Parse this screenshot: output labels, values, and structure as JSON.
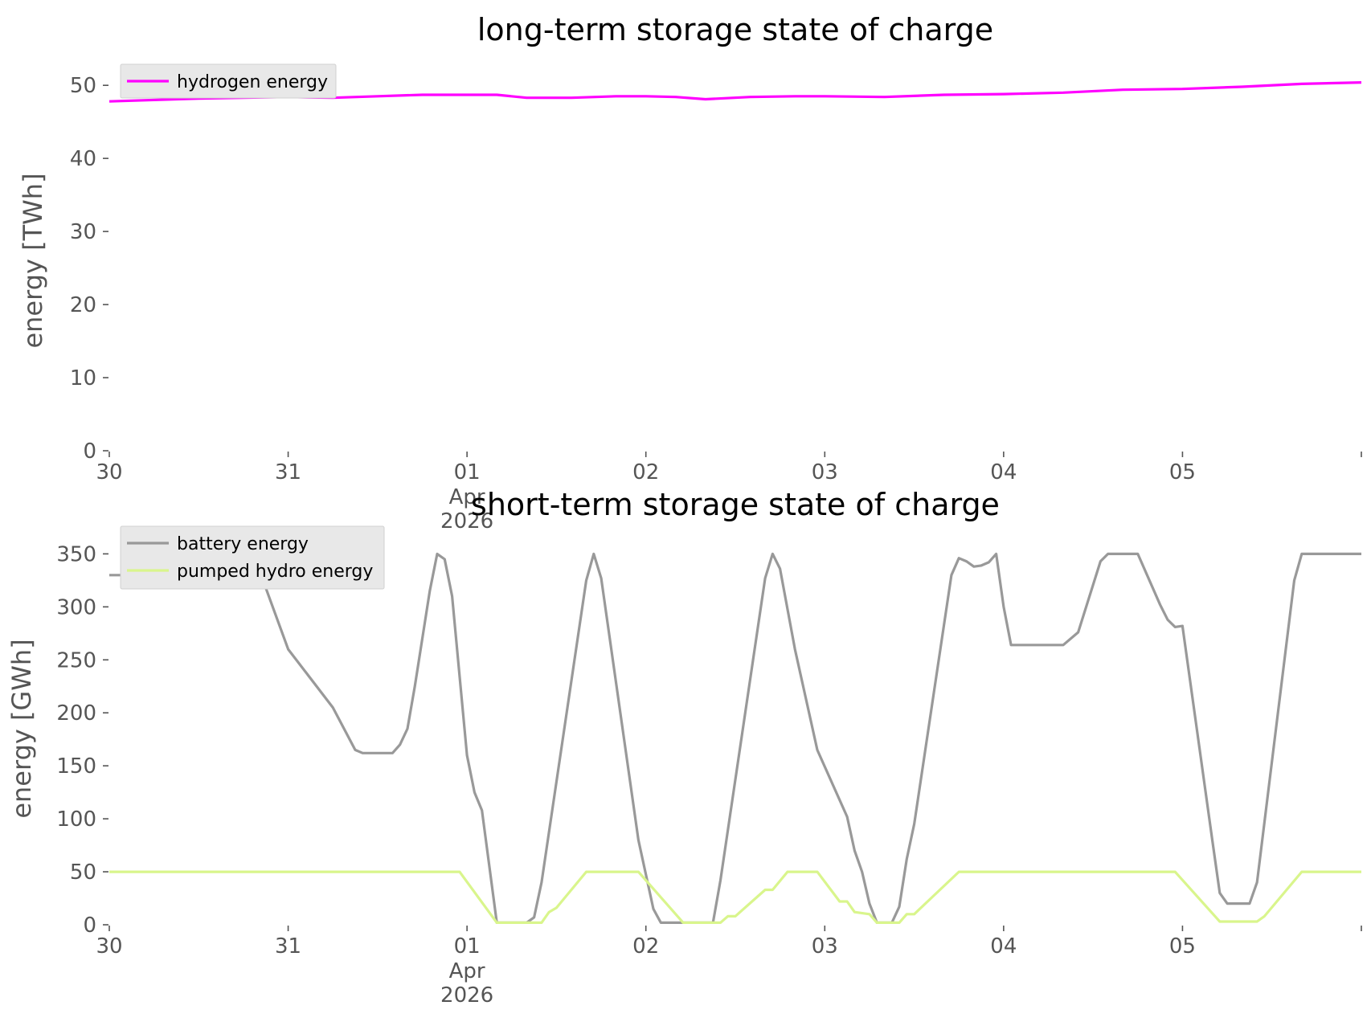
{
  "chart_data": [
    {
      "type": "line",
      "title": "long-term storage state of charge",
      "xlabel": "",
      "ylabel": "energy [TWh]",
      "ylim": [
        0,
        52
      ],
      "yticks": [
        0,
        10,
        20,
        30,
        40,
        50
      ],
      "xlim": [
        "2026-03-30",
        "2026-04-06"
      ],
      "xticks": [
        {
          "value": "2026-03-30",
          "label": "30"
        },
        {
          "value": "2026-03-31",
          "label": "31"
        },
        {
          "value": "2026-04-01",
          "label": "01",
          "sublabel": "Apr",
          "sublabel2": "2026"
        },
        {
          "value": "2026-04-02",
          "label": "02"
        },
        {
          "value": "2026-04-03",
          "label": "03"
        },
        {
          "value": "2026-04-04",
          "label": "04"
        },
        {
          "value": "2026-04-05",
          "label": "05"
        },
        {
          "value": "2026-04-06",
          "label": ""
        }
      ],
      "grid": false,
      "legend_position": "top-left",
      "series": [
        {
          "name": "hydrogen energy",
          "color": "#ff00ff",
          "points": [
            [
              "2026-03-30T00:00",
              47.8
            ],
            [
              "2026-03-30T12:00",
              48.2
            ],
            [
              "2026-03-31T00:00",
              48.4
            ],
            [
              "2026-03-31T06:00",
              48.3
            ],
            [
              "2026-03-31T12:00",
              48.5
            ],
            [
              "2026-03-31T18:00",
              48.7
            ],
            [
              "2026-04-01T00:00",
              48.7
            ],
            [
              "2026-04-01T04:00",
              48.7
            ],
            [
              "2026-04-01T08:00",
              48.3
            ],
            [
              "2026-04-01T14:00",
              48.3
            ],
            [
              "2026-04-01T20:00",
              48.5
            ],
            [
              "2026-04-02T00:00",
              48.5
            ],
            [
              "2026-04-02T04:00",
              48.4
            ],
            [
              "2026-04-02T08:00",
              48.1
            ],
            [
              "2026-04-02T14:00",
              48.4
            ],
            [
              "2026-04-02T20:00",
              48.5
            ],
            [
              "2026-04-03T00:00",
              48.5
            ],
            [
              "2026-04-03T08:00",
              48.4
            ],
            [
              "2026-04-03T16:00",
              48.7
            ],
            [
              "2026-04-04T00:00",
              48.8
            ],
            [
              "2026-04-04T08:00",
              49.0
            ],
            [
              "2026-04-04T16:00",
              49.4
            ],
            [
              "2026-04-05T00:00",
              49.5
            ],
            [
              "2026-04-05T08:00",
              49.8
            ],
            [
              "2026-04-05T16:00",
              50.2
            ],
            [
              "2026-04-06T00:00",
              50.4
            ]
          ]
        }
      ]
    },
    {
      "type": "line",
      "title": "short-term storage state of charge",
      "xlabel": "",
      "ylabel": "energy [GWh]",
      "ylim": [
        0,
        370
      ],
      "yticks": [
        0,
        50,
        100,
        150,
        200,
        250,
        300,
        350
      ],
      "xlim": [
        "2026-03-30",
        "2026-04-06"
      ],
      "xticks": [
        {
          "value": "2026-03-30",
          "label": "30"
        },
        {
          "value": "2026-03-31",
          "label": "31"
        },
        {
          "value": "2026-04-01",
          "label": "01",
          "sublabel": "Apr",
          "sublabel2": "2026"
        },
        {
          "value": "2026-04-02",
          "label": "02"
        },
        {
          "value": "2026-04-03",
          "label": "03"
        },
        {
          "value": "2026-04-04",
          "label": "04"
        },
        {
          "value": "2026-04-05",
          "label": "05"
        },
        {
          "value": "2026-04-06",
          "label": ""
        }
      ],
      "grid": false,
      "legend_position": "top-left",
      "series": [
        {
          "name": "battery energy",
          "color": "#999999",
          "points": [
            [
              "2026-03-30T00:00",
              330
            ],
            [
              "2026-03-30T12:00",
              330
            ],
            [
              "2026-03-30T14:00",
              336
            ],
            [
              "2026-03-30T18:00",
              351
            ],
            [
              "2026-03-30T20:00",
              337
            ],
            [
              "2026-03-31T00:00",
              260
            ],
            [
              "2026-03-31T06:00",
              205
            ],
            [
              "2026-03-31T09:00",
              165
            ],
            [
              "2026-03-31T10:00",
              162
            ],
            [
              "2026-03-31T14:00",
              162
            ],
            [
              "2026-03-31T15:00",
              170
            ],
            [
              "2026-03-31T16:00",
              185
            ],
            [
              "2026-03-31T17:00",
              225
            ],
            [
              "2026-03-31T19:00",
              315
            ],
            [
              "2026-03-31T20:00",
              350
            ],
            [
              "2026-03-31T21:00",
              345
            ],
            [
              "2026-03-31T22:00",
              310
            ],
            [
              "2026-04-01T00:00",
              160
            ],
            [
              "2026-04-01T01:00",
              125
            ],
            [
              "2026-04-01T02:00",
              108
            ],
            [
              "2026-04-01T04:00",
              2
            ],
            [
              "2026-04-01T08:00",
              2
            ],
            [
              "2026-04-01T09:00",
              7
            ],
            [
              "2026-04-01T10:00",
              40
            ],
            [
              "2026-04-01T16:00",
              325
            ],
            [
              "2026-04-01T17:00",
              350
            ],
            [
              "2026-04-01T18:00",
              327
            ],
            [
              "2026-04-01T23:00",
              80
            ],
            [
              "2026-04-02T01:00",
              15
            ],
            [
              "2026-04-02T02:00",
              2
            ],
            [
              "2026-04-02T09:00",
              2
            ],
            [
              "2026-04-02T10:00",
              42
            ],
            [
              "2026-04-02T16:00",
              327
            ],
            [
              "2026-04-02T17:00",
              350
            ],
            [
              "2026-04-02T18:00",
              336
            ],
            [
              "2026-04-02T20:00",
              260
            ],
            [
              "2026-04-02T23:00",
              165
            ],
            [
              "2026-04-03T03:00",
              102
            ],
            [
              "2026-04-03T04:00",
              70
            ],
            [
              "2026-04-03T05:00",
              50
            ],
            [
              "2026-04-03T06:00",
              20
            ],
            [
              "2026-04-03T07:00",
              2
            ],
            [
              "2026-04-03T09:00",
              2
            ],
            [
              "2026-04-03T10:00",
              17
            ],
            [
              "2026-04-03T11:00",
              62
            ],
            [
              "2026-04-03T12:00",
              95
            ],
            [
              "2026-04-03T17:00",
              330
            ],
            [
              "2026-04-03T18:00",
              346
            ],
            [
              "2026-04-03T19:00",
              343
            ],
            [
              "2026-04-03T20:00",
              338
            ],
            [
              "2026-04-03T21:00",
              339
            ],
            [
              "2026-04-03T22:00",
              342
            ],
            [
              "2026-04-03T23:00",
              350
            ],
            [
              "2026-04-04T00:00",
              300
            ],
            [
              "2026-04-04T01:00",
              264
            ],
            [
              "2026-04-04T08:00",
              264
            ],
            [
              "2026-04-04T10:00",
              276
            ],
            [
              "2026-04-04T13:00",
              343
            ],
            [
              "2026-04-04T14:00",
              350
            ],
            [
              "2026-04-04T18:00",
              350
            ],
            [
              "2026-04-04T21:00",
              302
            ],
            [
              "2026-04-04T22:00",
              288
            ],
            [
              "2026-04-04T23:00",
              281
            ],
            [
              "2026-04-05T00:00",
              282
            ],
            [
              "2026-04-05T04:00",
              80
            ],
            [
              "2026-04-05T05:00",
              30
            ],
            [
              "2026-04-05T06:00",
              20
            ],
            [
              "2026-04-05T09:00",
              20
            ],
            [
              "2026-04-05T10:00",
              40
            ],
            [
              "2026-04-05T15:00",
              325
            ],
            [
              "2026-04-05T16:00",
              350
            ],
            [
              "2026-04-06T00:00",
              350
            ]
          ]
        },
        {
          "name": "pumped hydro energy",
          "color": "#d9f58c",
          "points": [
            [
              "2026-03-30T00:00",
              50
            ],
            [
              "2026-03-31T23:00",
              50
            ],
            [
              "2026-04-01T04:00",
              2
            ],
            [
              "2026-04-01T10:00",
              2
            ],
            [
              "2026-04-01T11:00",
              12
            ],
            [
              "2026-04-01T12:00",
              16
            ],
            [
              "2026-04-01T16:00",
              50
            ],
            [
              "2026-04-01T23:00",
              50
            ],
            [
              "2026-04-02T05:00",
              2
            ],
            [
              "2026-04-02T10:00",
              2
            ],
            [
              "2026-04-02T11:00",
              8
            ],
            [
              "2026-04-02T12:00",
              8
            ],
            [
              "2026-04-02T16:00",
              33
            ],
            [
              "2026-04-02T17:00",
              33
            ],
            [
              "2026-04-02T19:00",
              50
            ],
            [
              "2026-04-02T23:00",
              50
            ],
            [
              "2026-04-03T02:00",
              22
            ],
            [
              "2026-04-03T03:00",
              22
            ],
            [
              "2026-04-03T04:00",
              12
            ],
            [
              "2026-04-03T06:00",
              10
            ],
            [
              "2026-04-03T07:00",
              2
            ],
            [
              "2026-04-03T10:00",
              2
            ],
            [
              "2026-04-03T11:00",
              10
            ],
            [
              "2026-04-03T12:00",
              10
            ],
            [
              "2026-04-03T18:00",
              50
            ],
            [
              "2026-04-04T23:00",
              50
            ],
            [
              "2026-04-05T05:00",
              3
            ],
            [
              "2026-04-05T10:00",
              3
            ],
            [
              "2026-04-05T11:00",
              8
            ],
            [
              "2026-04-05T16:00",
              50
            ],
            [
              "2026-04-06T00:00",
              50
            ]
          ]
        }
      ]
    }
  ]
}
